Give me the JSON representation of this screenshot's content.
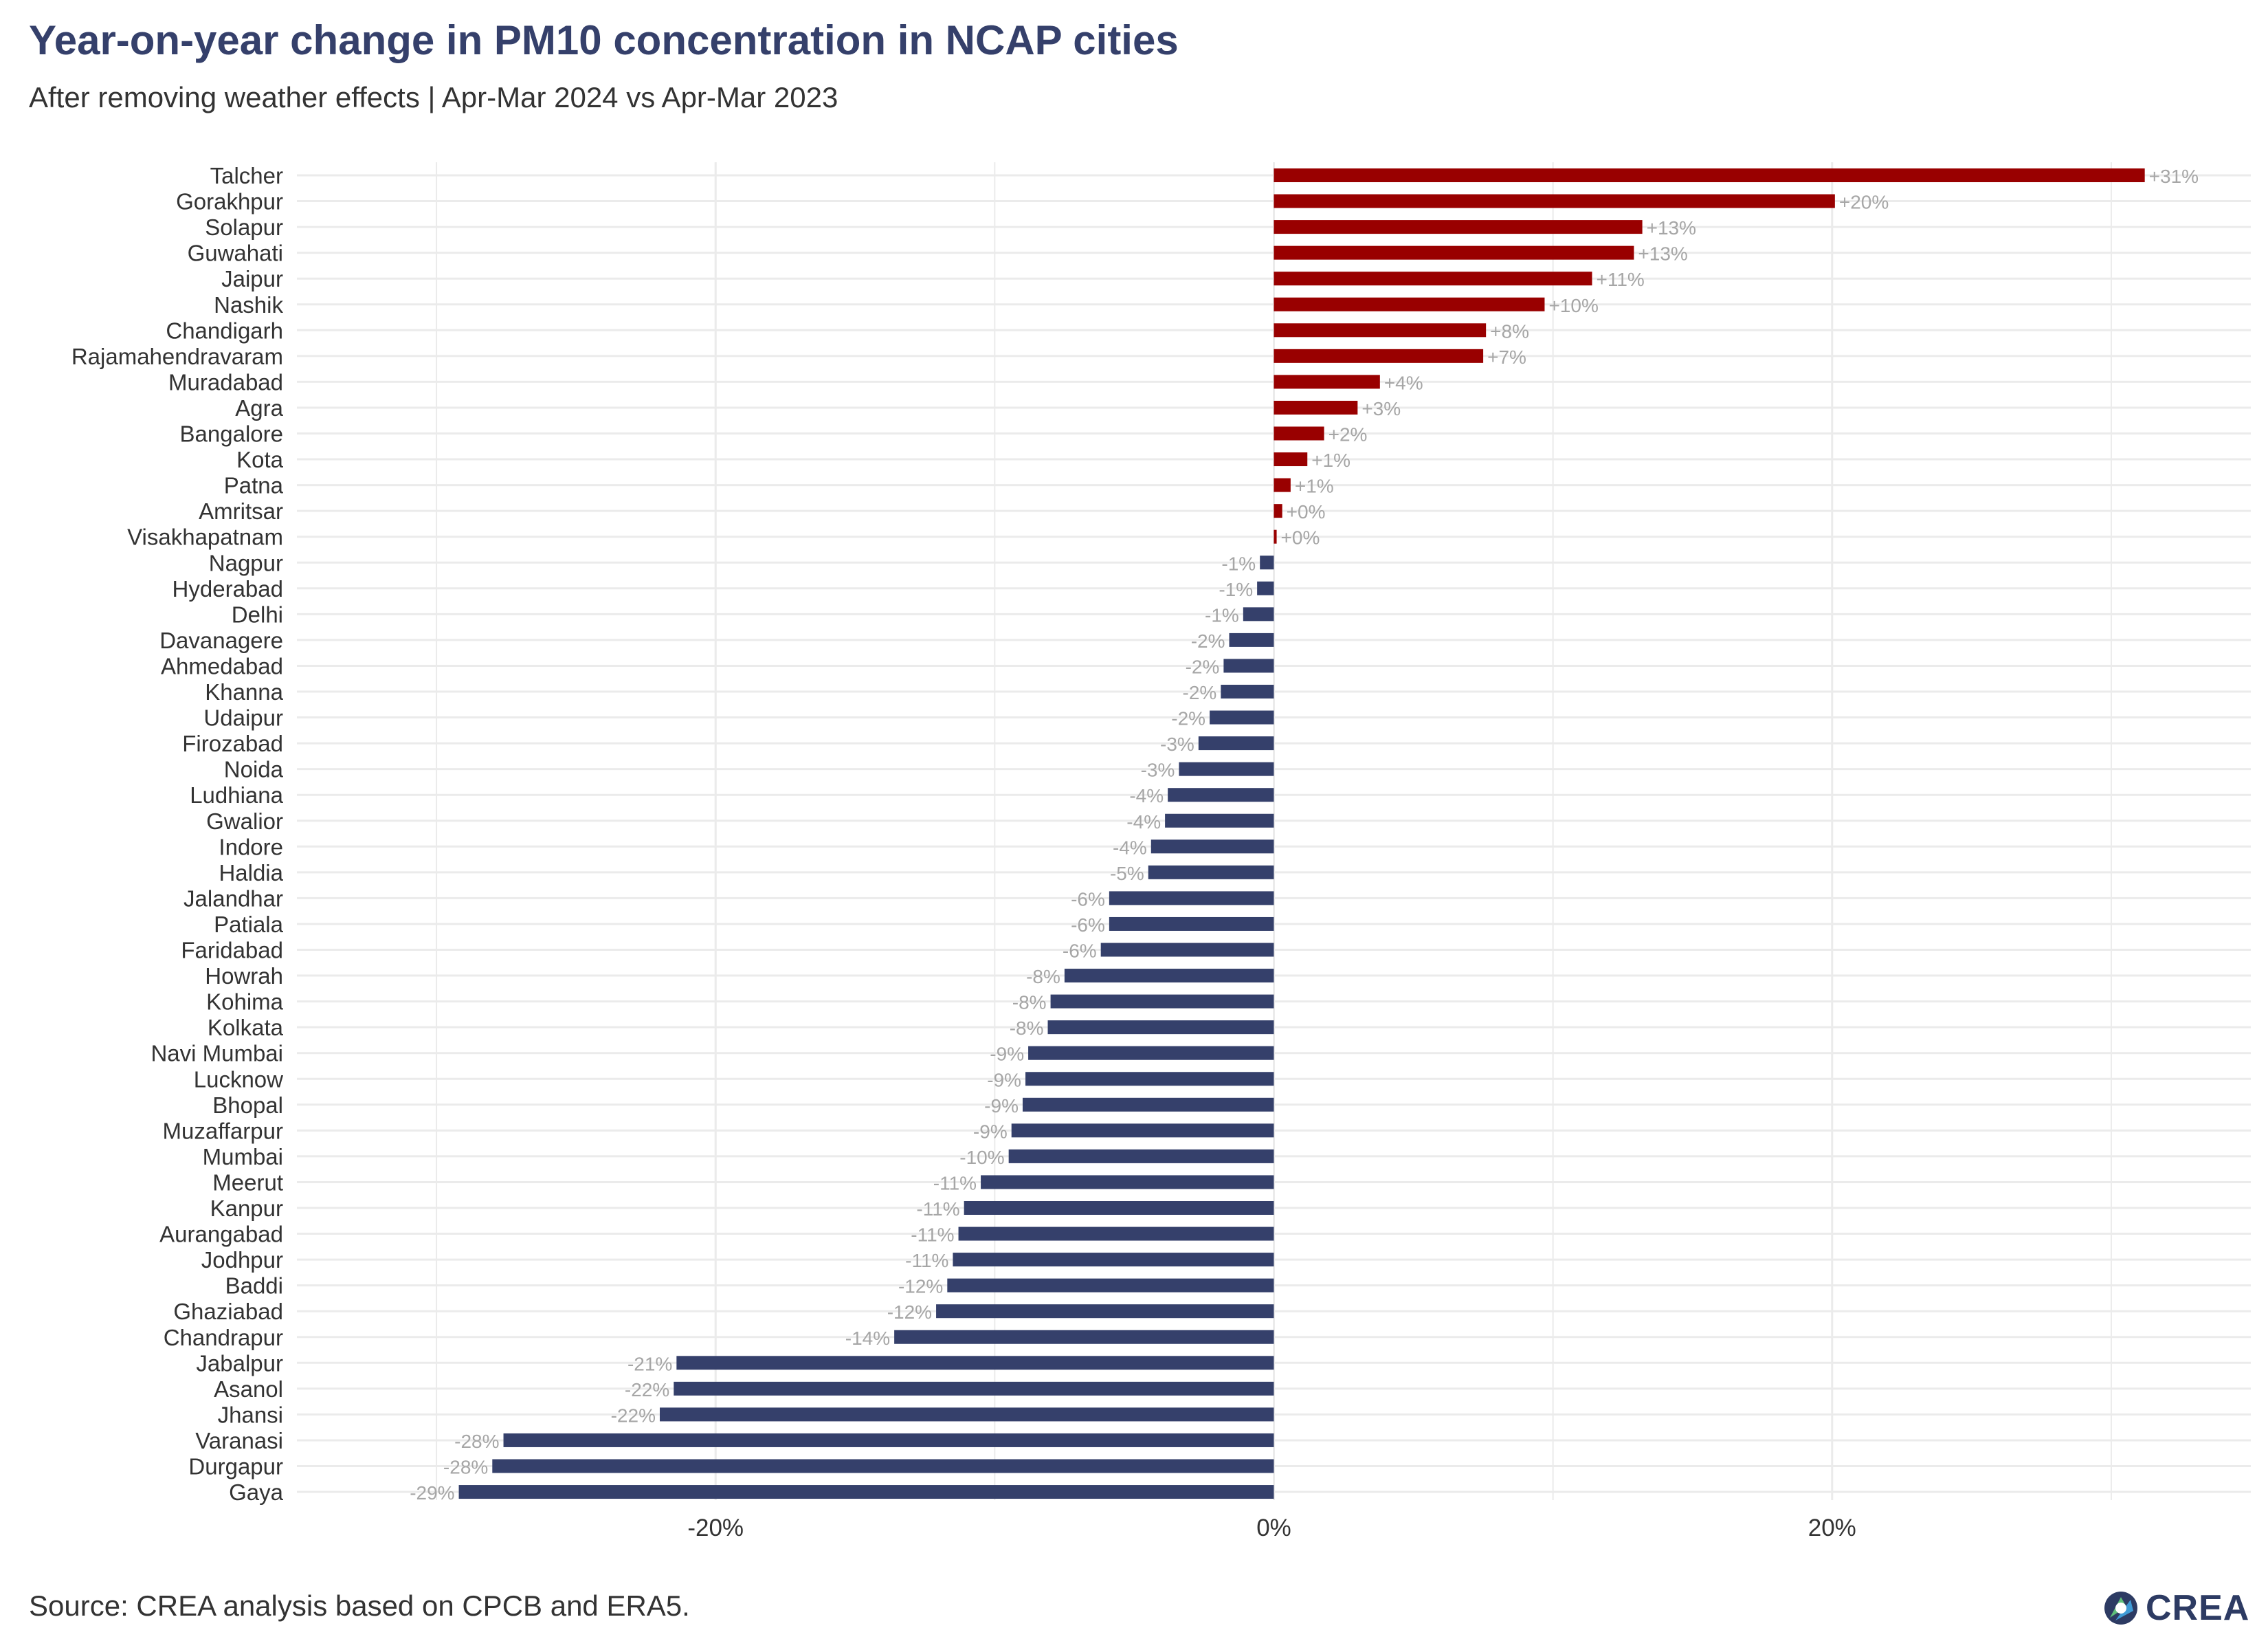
{
  "header": {
    "title": "Year-on-year change in PM10 concentration in NCAP cities",
    "subtitle": "After removing weather effects | Apr-Mar 2024 vs Apr-Mar 2023"
  },
  "footer": {
    "caption": "Source: CREA analysis based on CPCB and ERA5.",
    "logo_text": "CREA"
  },
  "colors": {
    "positive": "#990000",
    "negative": "#35406b",
    "label": "#a6a6a6",
    "grid": "#ebebeb"
  },
  "chart_data": {
    "type": "bar",
    "orientation": "horizontal",
    "title": "Year-on-year change in PM10 concentration in NCAP cities",
    "subtitle": "After removing weather effects | Apr-Mar 2024 vs Apr-Mar 2023",
    "xlabel": "",
    "ylabel": "",
    "xlim": [
      -35,
      35
    ],
    "xticks": [
      -20,
      0,
      20
    ],
    "xtick_labels": [
      "-20%",
      "0%",
      "20%"
    ],
    "grid": true,
    "categories": [
      "Talcher",
      "Gorakhpur",
      "Solapur",
      "Guwahati",
      "Jaipur",
      "Nashik",
      "Chandigarh",
      "Rajamahendravaram",
      "Muradabad",
      "Agra",
      "Bangalore",
      "Kota",
      "Patna",
      "Amritsar",
      "Visakhapatnam",
      "Nagpur",
      "Hyderabad",
      "Delhi",
      "Davanagere",
      "Ahmedabad",
      "Khanna",
      "Udaipur",
      "Firozabad",
      "Noida",
      "Ludhiana",
      "Gwalior",
      "Indore",
      "Haldia",
      "Jalandhar",
      "Patiala",
      "Faridabad",
      "Howrah",
      "Kohima",
      "Kolkata",
      "Navi Mumbai",
      "Lucknow",
      "Bhopal",
      "Muzaffarpur",
      "Mumbai",
      "Meerut",
      "Kanpur",
      "Aurangabad",
      "Jodhpur",
      "Baddi",
      "Ghaziabad",
      "Chandrapur",
      "Jabalpur",
      "Asanol",
      "Jhansi",
      "Varanasi",
      "Durgapur",
      "Gaya"
    ],
    "values": [
      31.2,
      20.1,
      13.2,
      12.9,
      11.4,
      9.7,
      7.6,
      7.5,
      3.8,
      3.0,
      1.8,
      1.2,
      0.6,
      0.3,
      0.1,
      -0.5,
      -0.6,
      -1.1,
      -1.6,
      -1.8,
      -1.9,
      -2.3,
      -2.7,
      -3.4,
      -3.8,
      -3.9,
      -4.4,
      -4.5,
      -5.9,
      -5.9,
      -6.2,
      -7.5,
      -8.0,
      -8.1,
      -8.8,
      -8.9,
      -9.0,
      -9.4,
      -9.5,
      -10.5,
      -11.1,
      -11.3,
      -11.5,
      -11.7,
      -12.1,
      -13.6,
      -21.4,
      -21.5,
      -22.0,
      -27.6,
      -28.0,
      -29.2
    ],
    "data_labels": [
      "+31%",
      "+20%",
      "+13%",
      "+13%",
      "+11%",
      "+10%",
      "+8%",
      "+7%",
      "+4%",
      "+3%",
      "+2%",
      "+1%",
      "+1%",
      "+0%",
      "+0%",
      "-1%",
      "-1%",
      "-1%",
      "-2%",
      "-2%",
      "-2%",
      "-2%",
      "-3%",
      "-3%",
      "-4%",
      "-4%",
      "-4%",
      "-5%",
      "-6%",
      "-6%",
      "-6%",
      "-8%",
      "-8%",
      "-8%",
      "-9%",
      "-9%",
      "-9%",
      "-9%",
      "-10%",
      "-11%",
      "-11%",
      "-11%",
      "-11%",
      "-12%",
      "-12%",
      "-14%",
      "-21%",
      "-22%",
      "-22%",
      "-28%",
      "-28%",
      "-29%"
    ]
  }
}
